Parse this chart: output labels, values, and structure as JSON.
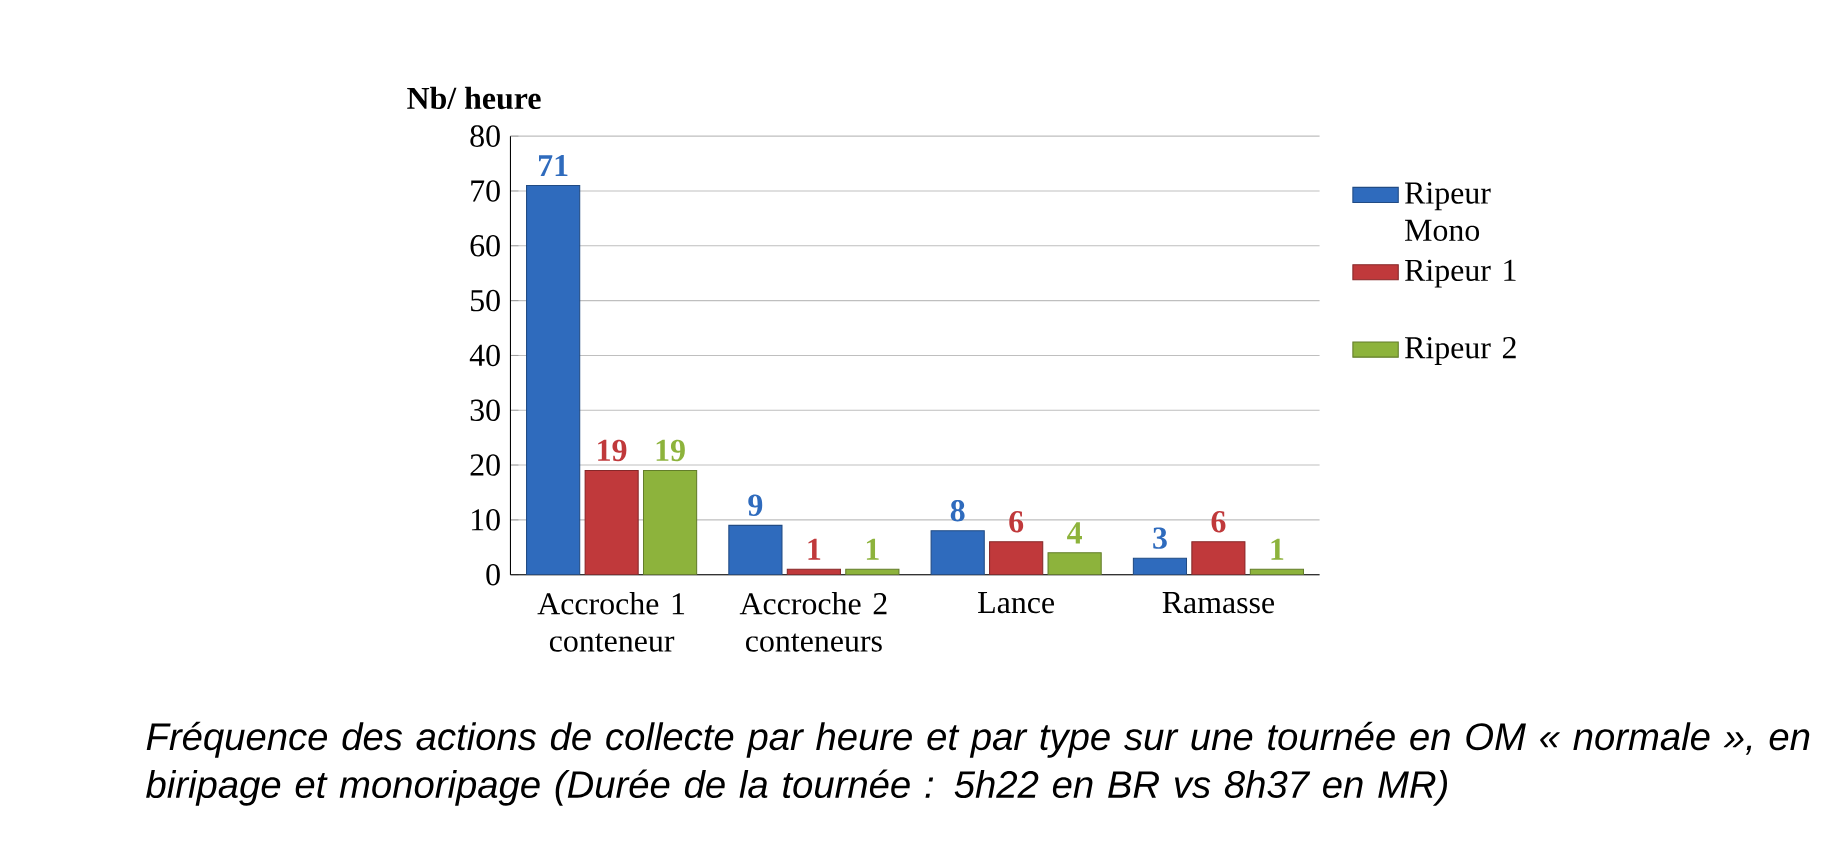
{
  "chart_data": {
    "type": "bar",
    "ylabel": "Nb/ heure",
    "categories": [
      "Accroche 1 conteneur",
      "Accroche 2 conteneurs",
      "Lance",
      "Ramasse"
    ],
    "series": [
      {
        "name": "Ripeur Mono",
        "color": "#2f6bbd",
        "values": [
          71,
          9,
          8,
          3
        ]
      },
      {
        "name": "Ripeur 1",
        "color": "#c0393b",
        "values": [
          19,
          1,
          6,
          6
        ]
      },
      {
        "name": "Ripeur 2",
        "color": "#8db33c",
        "values": [
          19,
          1,
          4,
          1
        ]
      }
    ],
    "ylim": [
      0,
      80
    ],
    "yticks": [
      0,
      10,
      20,
      30,
      40,
      50,
      60,
      70,
      80
    ],
    "grid": "y",
    "legend": "right",
    "data_labels": true,
    "annotations": [
      "Fréquence des actions de collecte par heure et par type sur une tournée en OM « normale », en biripage et monoripage (Durée de la tournée : 5h22 en BR vs 8h37 en MR)"
    ]
  }
}
